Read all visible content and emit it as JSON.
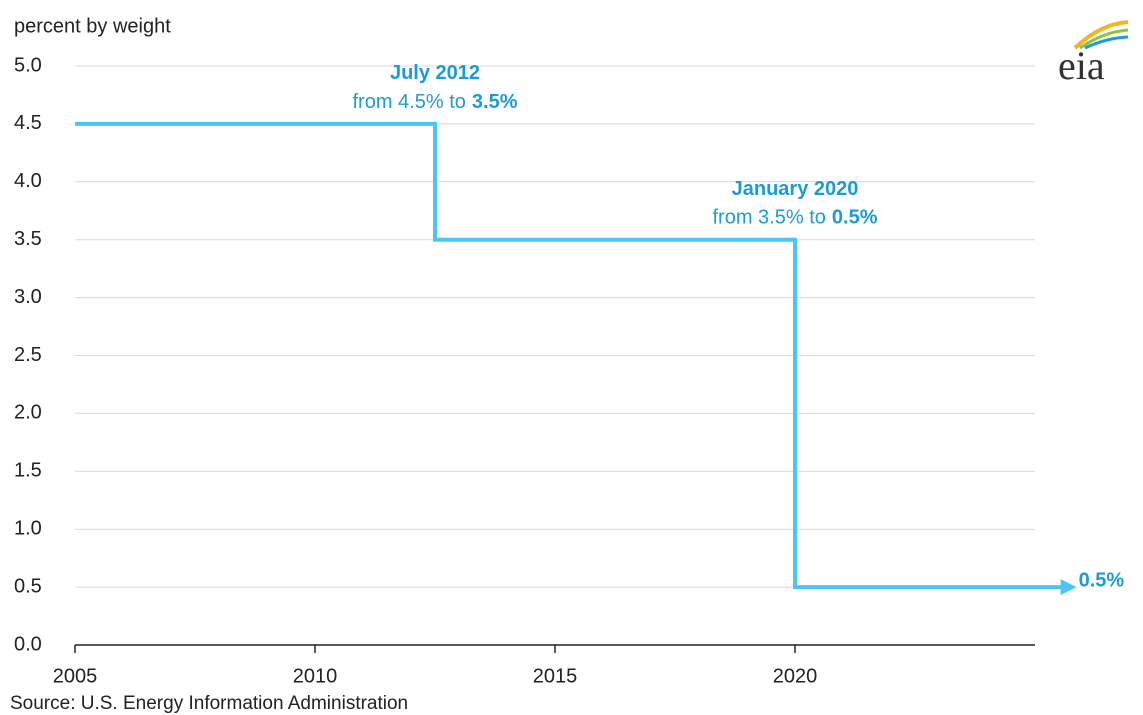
{
  "chart_data": {
    "type": "line",
    "y_axis_label": "percent by weight",
    "source": "Source: U.S. Energy Information Administration",
    "logo": "eia",
    "series": [
      {
        "color": "#4dc4f5",
        "x": [
          2005,
          2012.5,
          2012.5,
          2020,
          2020,
          2025.7
        ],
        "values": [
          4.5,
          4.5,
          3.5,
          3.5,
          0.5,
          0.5
        ]
      }
    ],
    "xlim": [
      2005,
      2025
    ],
    "ylim": [
      0,
      5
    ],
    "xticks": [
      2005,
      2010,
      2015,
      2020
    ],
    "yticks": [
      {
        "value": 0,
        "label": "0.0"
      },
      0.5,
      {
        "value": 1,
        "label": "1.0"
      },
      1.5,
      {
        "value": 2,
        "label": "2.0"
      },
      2.5,
      {
        "value": 3,
        "label": "3.0"
      },
      3.5,
      {
        "value": 4,
        "label": "4.0"
      },
      4.5,
      {
        "value": 5,
        "label": "5.0"
      }
    ],
    "grid": true,
    "annotations": [
      {
        "title": "July 2012",
        "text": "from 4.5% to",
        "bold": "3.5%"
      },
      {
        "title": "January 2020",
        "text": "from 3.5% to",
        "bold": "0.5%"
      }
    ],
    "end_label": "0.5%"
  }
}
